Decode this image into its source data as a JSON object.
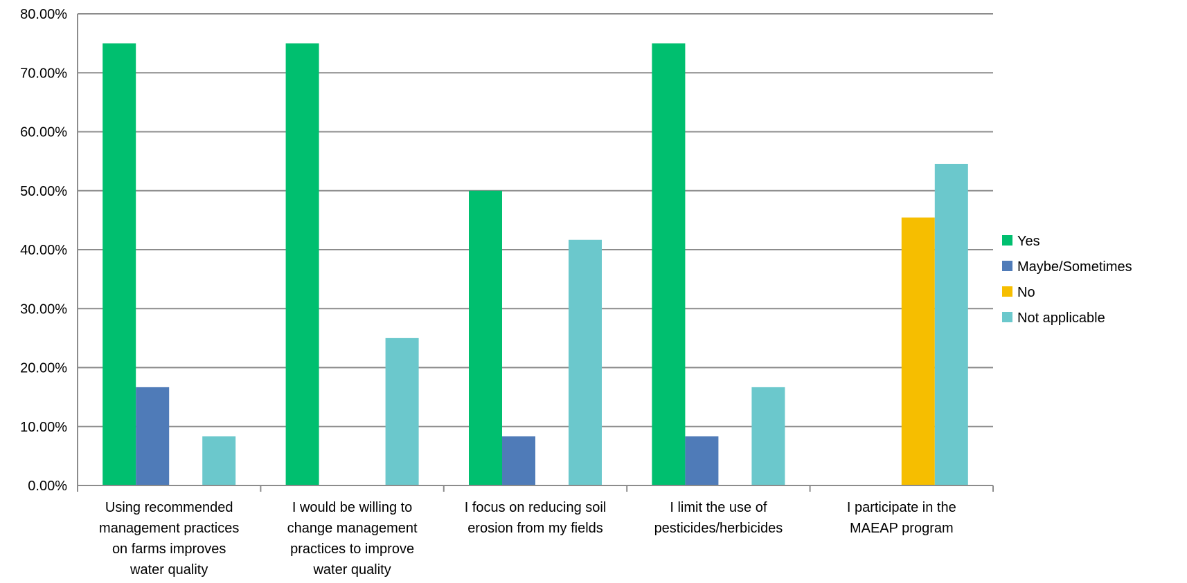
{
  "chart_data": {
    "type": "bar",
    "title": "",
    "xlabel": "",
    "ylabel": "",
    "ylim": [
      0,
      0.8
    ],
    "y_ticks": [
      0,
      0.1,
      0.2,
      0.3,
      0.4,
      0.5,
      0.6,
      0.7,
      0.8
    ],
    "y_tick_labels": [
      "0.00%",
      "10.00%",
      "20.00%",
      "30.00%",
      "40.00%",
      "50.00%",
      "60.00%",
      "70.00%",
      "80.00%"
    ],
    "grid": true,
    "legend_position": "right",
    "categories": [
      [
        "Using recommended",
        "management practices",
        "on farms improves",
        "water quality"
      ],
      [
        "I would be willing to",
        "change management",
        "practices to improve",
        "water quality"
      ],
      [
        "I focus on reducing soil",
        "erosion from my fields"
      ],
      [
        "I limit the use of",
        "pesticides/herbicides"
      ],
      [
        "I participate in the",
        "MAEAP program"
      ]
    ],
    "series": [
      {
        "name": "Yes",
        "color": "#00BF6F",
        "values": [
          0.75,
          0.75,
          0.5,
          0.75,
          0
        ]
      },
      {
        "name": "Maybe/Sometimes",
        "color": "#4F7BB8",
        "values": [
          0.1667,
          0,
          0.0833,
          0.0833,
          0
        ]
      },
      {
        "name": "No",
        "color": "#F6BE00",
        "values": [
          0,
          0,
          0,
          0,
          0.4545
        ]
      },
      {
        "name": "Not applicable",
        "color": "#6BC8CC",
        "values": [
          0.0833,
          0.25,
          0.4167,
          0.1667,
          0.5455
        ]
      }
    ]
  }
}
